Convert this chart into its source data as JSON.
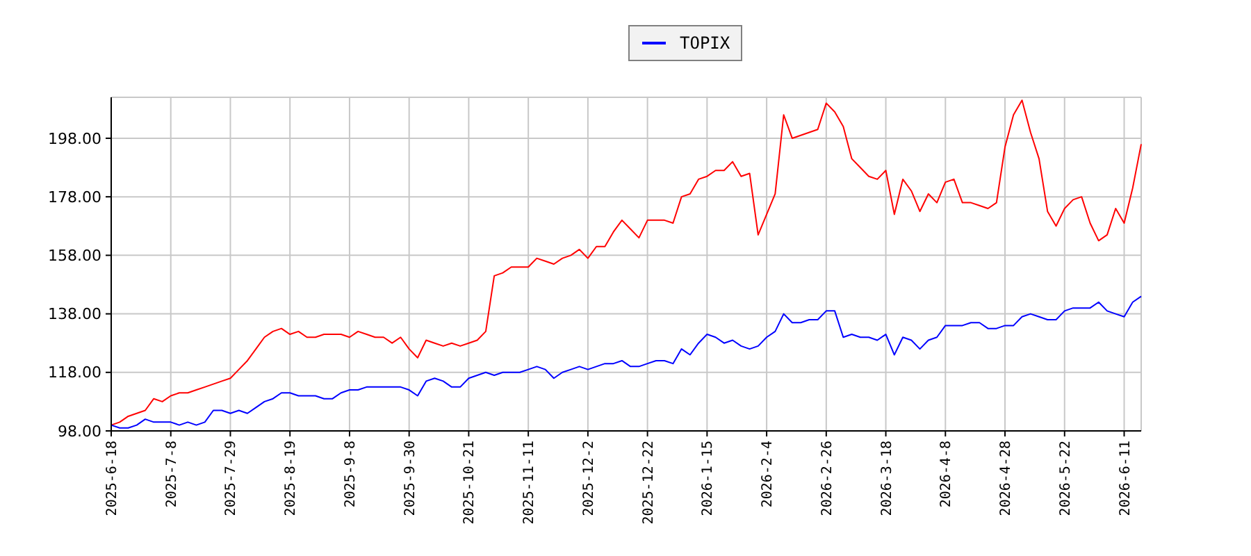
{
  "chart_data": {
    "type": "line",
    "categories": [
      "2025-6-18",
      null,
      null,
      null,
      null,
      null,
      null,
      "2025-7-8",
      null,
      null,
      null,
      null,
      null,
      null,
      "2025-7-29",
      null,
      null,
      null,
      null,
      null,
      null,
      "2025-8-19",
      null,
      null,
      null,
      null,
      null,
      null,
      "2025-9-8",
      null,
      null,
      null,
      null,
      null,
      null,
      "2025-9-30",
      null,
      null,
      null,
      null,
      null,
      null,
      "2025-10-21",
      null,
      null,
      null,
      null,
      null,
      null,
      "2025-11-11",
      null,
      null,
      null,
      null,
      null,
      null,
      "2025-12-2",
      null,
      null,
      null,
      null,
      null,
      null,
      "2025-12-22",
      null,
      null,
      null,
      null,
      null,
      null,
      "2026-1-15",
      null,
      null,
      null,
      null,
      null,
      null,
      "2026-2-4",
      null,
      null,
      null,
      null,
      null,
      null,
      "2026-2-26",
      null,
      null,
      null,
      null,
      null,
      null,
      "2026-3-18",
      null,
      null,
      null,
      null,
      null,
      null,
      "2026-4-8",
      null,
      null,
      null,
      null,
      null,
      null,
      "2026-4-28",
      null,
      null,
      null,
      null,
      null,
      null,
      "2026-5-22",
      null,
      null,
      null,
      null,
      null,
      null,
      "2026-6-11",
      null,
      null
    ],
    "series": [
      {
        "color": "#ff0000",
        "values": [
          100,
          101,
          103,
          104,
          105,
          109,
          108,
          110,
          111,
          111,
          112,
          113,
          114,
          115,
          116,
          119,
          122,
          126,
          130,
          132,
          133,
          131,
          132,
          130,
          130,
          131,
          131,
          131,
          130,
          132,
          131,
          130,
          130,
          128,
          130,
          126,
          123,
          129,
          128,
          127,
          128,
          127,
          128,
          129,
          132,
          151,
          152,
          154,
          154,
          154,
          157,
          156,
          155,
          157,
          158,
          160,
          157,
          161,
          161,
          166,
          170,
          167,
          164,
          170,
          170,
          170,
          169,
          178,
          179,
          184,
          185,
          187,
          187,
          190,
          185,
          186,
          165,
          172,
          179,
          206,
          198,
          199,
          200,
          201,
          210,
          207,
          202,
          191,
          188,
          185,
          184,
          187,
          172,
          184,
          180,
          173,
          179,
          176,
          183,
          184,
          176,
          176,
          175,
          174,
          176,
          195,
          206,
          211,
          200,
          191,
          173,
          168,
          174,
          177,
          178,
          169,
          163,
          165,
          174,
          169,
          181,
          196
        ]
      },
      {
        "name": "TOPIX",
        "color": "#0000ff",
        "values": [
          100,
          99,
          99,
          100,
          102,
          101,
          101,
          101,
          100,
          101,
          100,
          101,
          105,
          105,
          104,
          105,
          104,
          106,
          108,
          109,
          111,
          111,
          110,
          110,
          110,
          109,
          109,
          111,
          112,
          112,
          113,
          113,
          113,
          113,
          113,
          112,
          110,
          115,
          116,
          115,
          113,
          113,
          116,
          117,
          118,
          117,
          118,
          118,
          118,
          119,
          120,
          119,
          116,
          118,
          119,
          120,
          119,
          120,
          121,
          121,
          122,
          120,
          120,
          121,
          122,
          122,
          121,
          126,
          124,
          128,
          131,
          130,
          128,
          129,
          127,
          126,
          127,
          130,
          132,
          138,
          135,
          135,
          136,
          136,
          139,
          139,
          130,
          131,
          130,
          130,
          129,
          131,
          124,
          130,
          129,
          126,
          129,
          130,
          134,
          134,
          134,
          135,
          135,
          133,
          133,
          134,
          134,
          137,
          138,
          137,
          136,
          136,
          139,
          140,
          140,
          140,
          142,
          139,
          138,
          137,
          142,
          144
        ]
      }
    ],
    "ylim": [
      98,
      212
    ],
    "yticks": [
      {
        "value": 98,
        "label": "98.00"
      },
      {
        "value": 118,
        "label": "118.00"
      },
      {
        "value": 138,
        "label": "138.00"
      },
      {
        "value": 158,
        "label": "158.00"
      },
      {
        "value": 178,
        "label": "178.00"
      },
      {
        "value": 198,
        "label": "198.00"
      }
    ],
    "grid": true,
    "legend": "top"
  }
}
